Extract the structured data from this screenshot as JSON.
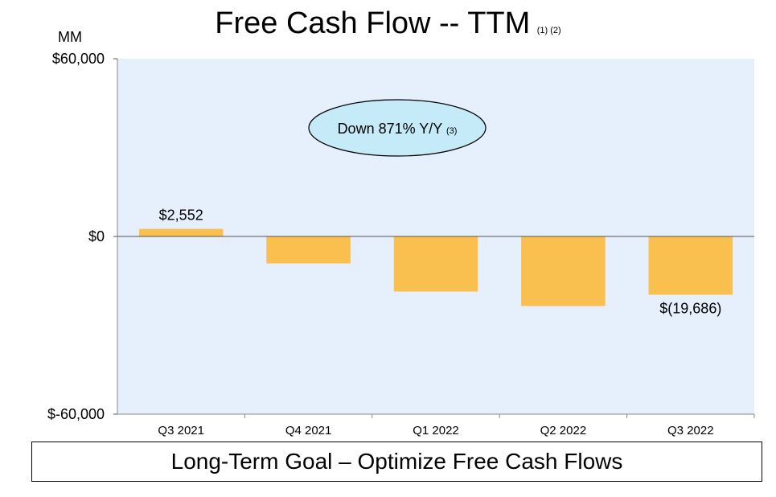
{
  "title": "Free Cash Flow -- TTM",
  "title_footnote": "(1) (2)",
  "unit_label": "MM",
  "callout": {
    "text": "Down 871% Y/Y",
    "footnote": "(3)"
  },
  "goal": "Long-Term Goal – Optimize Free Cash Flows",
  "colors": {
    "bar": "#F9BF4F",
    "plot_bg": "#E6F0FC",
    "callout_fill": "#C5EBF8"
  },
  "chart_data": {
    "type": "bar",
    "title": "Free Cash Flow -- TTM",
    "ylabel": "MM",
    "ylim": [
      -60000,
      60000
    ],
    "yticks": [
      {
        "value": 60000,
        "label": "$60,000"
      },
      {
        "value": 0,
        "label": "$0"
      },
      {
        "value": -60000,
        "label": "$-60,000"
      }
    ],
    "categories": [
      "Q3 2021",
      "Q4 2021",
      "Q1 2022",
      "Q2 2022",
      "Q3 2022"
    ],
    "values": [
      2552,
      -9100,
      -18600,
      -23500,
      -19686
    ],
    "data_labels": [
      "$2,552",
      "",
      "",
      "",
      "$(19,686)"
    ],
    "grid": false,
    "legend": "none"
  }
}
